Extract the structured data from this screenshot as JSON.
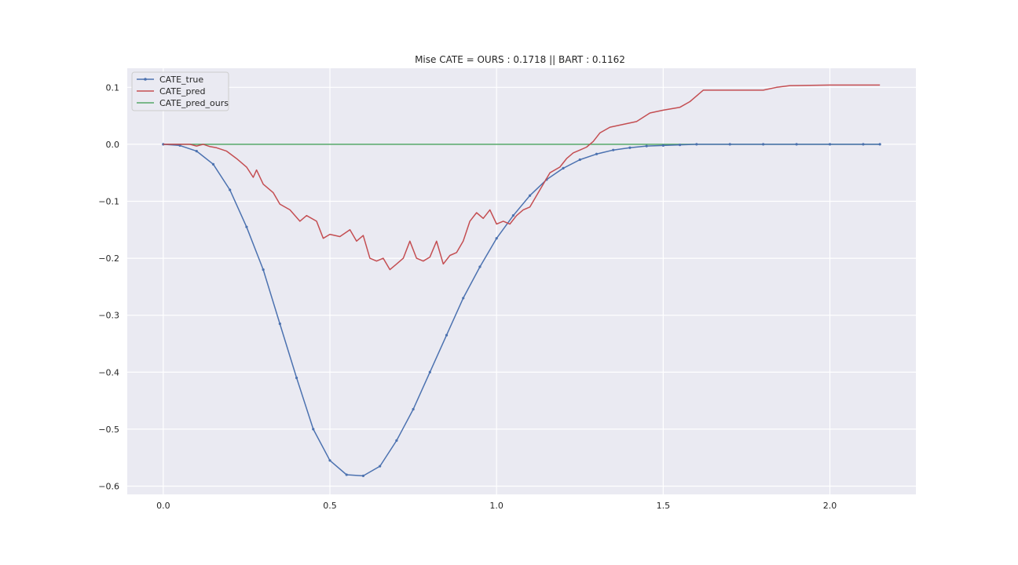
{
  "chart_data": {
    "type": "line",
    "title": "Mise CATE =  OURS : 0.1718 || BART : 0.1162",
    "xlabel": "",
    "ylabel": "",
    "xlim": [
      -0.108,
      2.258
    ],
    "ylim": [
      -0.6145,
      0.1335
    ],
    "xticks": [
      0.0,
      0.5,
      1.0,
      1.5,
      2.0
    ],
    "xtick_labels": [
      "0.0",
      "0.5",
      "1.0",
      "1.5",
      "2.0"
    ],
    "yticks": [
      0.1,
      0.0,
      -0.1,
      -0.2,
      -0.3,
      -0.4,
      -0.5,
      -0.6
    ],
    "ytick_labels": [
      "0.1",
      "0.0",
      "−0.1",
      "−0.2",
      "−0.3",
      "−0.4",
      "−0.5",
      "−0.6"
    ],
    "grid": true,
    "legend_position": "top-left",
    "background": "#eaeaf2",
    "series": [
      {
        "name": "CATE_true",
        "color": "#4c72b0",
        "marker": "dot",
        "x": [
          0.0,
          0.05,
          0.1,
          0.15,
          0.2,
          0.25,
          0.3,
          0.35,
          0.4,
          0.45,
          0.5,
          0.55,
          0.6,
          0.65,
          0.7,
          0.75,
          0.8,
          0.85,
          0.9,
          0.95,
          1.0,
          1.05,
          1.1,
          1.15,
          1.2,
          1.25,
          1.3,
          1.35,
          1.4,
          1.45,
          1.5,
          1.55,
          1.6,
          1.7,
          1.8,
          1.9,
          2.0,
          2.1,
          2.15
        ],
        "y": [
          0.0,
          -0.002,
          -0.012,
          -0.035,
          -0.08,
          -0.145,
          -0.22,
          -0.315,
          -0.41,
          -0.5,
          -0.555,
          -0.58,
          -0.582,
          -0.565,
          -0.52,
          -0.465,
          -0.4,
          -0.335,
          -0.27,
          -0.215,
          -0.165,
          -0.125,
          -0.09,
          -0.062,
          -0.042,
          -0.027,
          -0.017,
          -0.01,
          -0.006,
          -0.003,
          -0.002,
          -0.001,
          0.0,
          0.0,
          0.0,
          0.0,
          0.0,
          0.0,
          0.0
        ]
      },
      {
        "name": "CATE_pred",
        "color": "#c44e52",
        "marker": "none",
        "x": [
          0.0,
          0.08,
          0.1,
          0.12,
          0.14,
          0.16,
          0.19,
          0.22,
          0.25,
          0.27,
          0.28,
          0.3,
          0.33,
          0.35,
          0.38,
          0.41,
          0.43,
          0.46,
          0.48,
          0.5,
          0.53,
          0.56,
          0.58,
          0.6,
          0.62,
          0.64,
          0.66,
          0.68,
          0.7,
          0.72,
          0.74,
          0.76,
          0.78,
          0.8,
          0.82,
          0.84,
          0.86,
          0.88,
          0.9,
          0.92,
          0.94,
          0.96,
          0.98,
          1.0,
          1.02,
          1.04,
          1.06,
          1.08,
          1.1,
          1.13,
          1.16,
          1.19,
          1.21,
          1.23,
          1.25,
          1.27,
          1.29,
          1.31,
          1.34,
          1.38,
          1.42,
          1.46,
          1.5,
          1.55,
          1.58,
          1.62,
          1.7,
          1.8,
          1.84,
          1.88,
          2.0,
          2.15
        ],
        "y": [
          0.0,
          0.0,
          -0.003,
          0.0,
          -0.004,
          -0.006,
          -0.012,
          -0.025,
          -0.04,
          -0.058,
          -0.045,
          -0.07,
          -0.085,
          -0.105,
          -0.115,
          -0.135,
          -0.125,
          -0.135,
          -0.165,
          -0.158,
          -0.162,
          -0.15,
          -0.17,
          -0.16,
          -0.2,
          -0.205,
          -0.2,
          -0.22,
          -0.21,
          -0.2,
          -0.17,
          -0.2,
          -0.205,
          -0.198,
          -0.17,
          -0.21,
          -0.195,
          -0.19,
          -0.17,
          -0.135,
          -0.12,
          -0.13,
          -0.115,
          -0.14,
          -0.135,
          -0.14,
          -0.125,
          -0.115,
          -0.11,
          -0.08,
          -0.05,
          -0.04,
          -0.025,
          -0.015,
          -0.01,
          -0.005,
          0.005,
          0.02,
          0.03,
          0.035,
          0.04,
          0.055,
          0.06,
          0.065,
          0.075,
          0.095,
          0.095,
          0.095,
          0.1,
          0.103,
          0.104,
          0.104
        ]
      },
      {
        "name": "CATE_pred_ours",
        "color": "#55a868",
        "marker": "none",
        "x": [
          0.0,
          2.15
        ],
        "y": [
          0.0,
          0.0
        ]
      }
    ]
  }
}
